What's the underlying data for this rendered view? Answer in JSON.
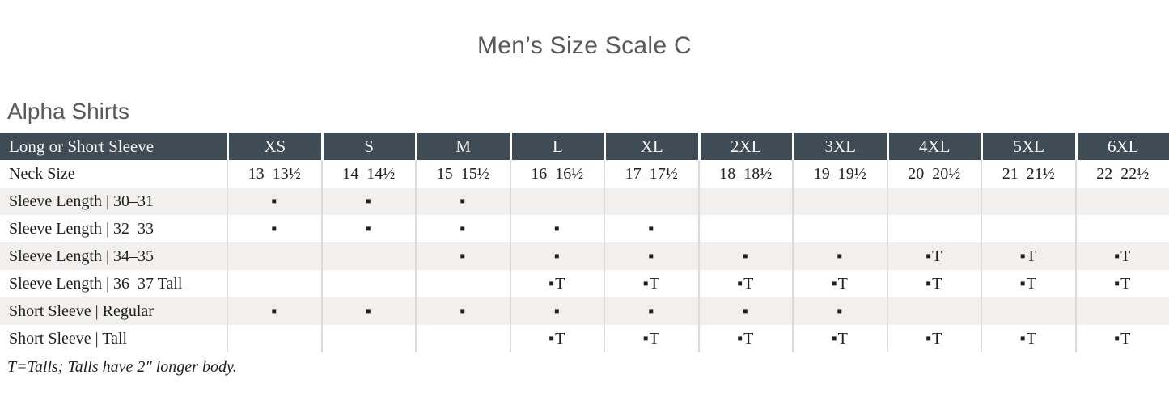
{
  "page": {
    "title": "Men’s Size Scale C",
    "section_heading": "Alpha Shirts",
    "footnote": "T=Talls; Talls have 2″ longer body."
  },
  "colors": {
    "header_bg": "#3f4c56",
    "header_text": "#f5f4f1",
    "stripe": "#f1f0ee",
    "separator": "#dcdbd9",
    "body_text": "#1f1f1f",
    "heading_text": "#58595b"
  },
  "table": {
    "corner_label": "Long or Short Sleeve",
    "size_columns": [
      "XS",
      "S",
      "M",
      "L",
      "XL",
      "2XL",
      "3XL",
      "4XL",
      "5XL",
      "6XL"
    ],
    "legend": {
      "available": "▪",
      "available_tall": "▪T"
    },
    "rows": [
      {
        "label": "Neck Size",
        "cells": [
          "13–13½",
          "14–14½",
          "15–15½",
          "16–16½",
          "17–17½",
          "18–18½",
          "19–19½",
          "20–20½",
          "21–21½",
          "22–22½"
        ]
      },
      {
        "label": "Sleeve Length | 30–31",
        "cells": [
          "▪",
          "▪",
          "▪",
          "",
          "",
          "",
          "",
          "",
          "",
          ""
        ]
      },
      {
        "label": "Sleeve Length | 32–33",
        "cells": [
          "▪",
          "▪",
          "▪",
          "▪",
          "▪",
          "",
          "",
          "",
          "",
          ""
        ]
      },
      {
        "label": "Sleeve Length | 34–35",
        "cells": [
          "",
          "",
          "▪",
          "▪",
          "▪",
          "▪",
          "▪",
          "▪T",
          "▪T",
          "▪T"
        ]
      },
      {
        "label": "Sleeve Length | 36–37 Tall",
        "cells": [
          "",
          "",
          "",
          "▪T",
          "▪T",
          "▪T",
          "▪T",
          "▪T",
          "▪T",
          "▪T"
        ]
      },
      {
        "label": "Short Sleeve | Regular",
        "cells": [
          "▪",
          "▪",
          "▪",
          "▪",
          "▪",
          "▪",
          "▪",
          "",
          "",
          ""
        ]
      },
      {
        "label": "Short Sleeve | Tall",
        "cells": [
          "",
          "",
          "",
          "▪T",
          "▪T",
          "▪T",
          "▪T",
          "▪T",
          "▪T",
          "▪T"
        ]
      }
    ]
  }
}
